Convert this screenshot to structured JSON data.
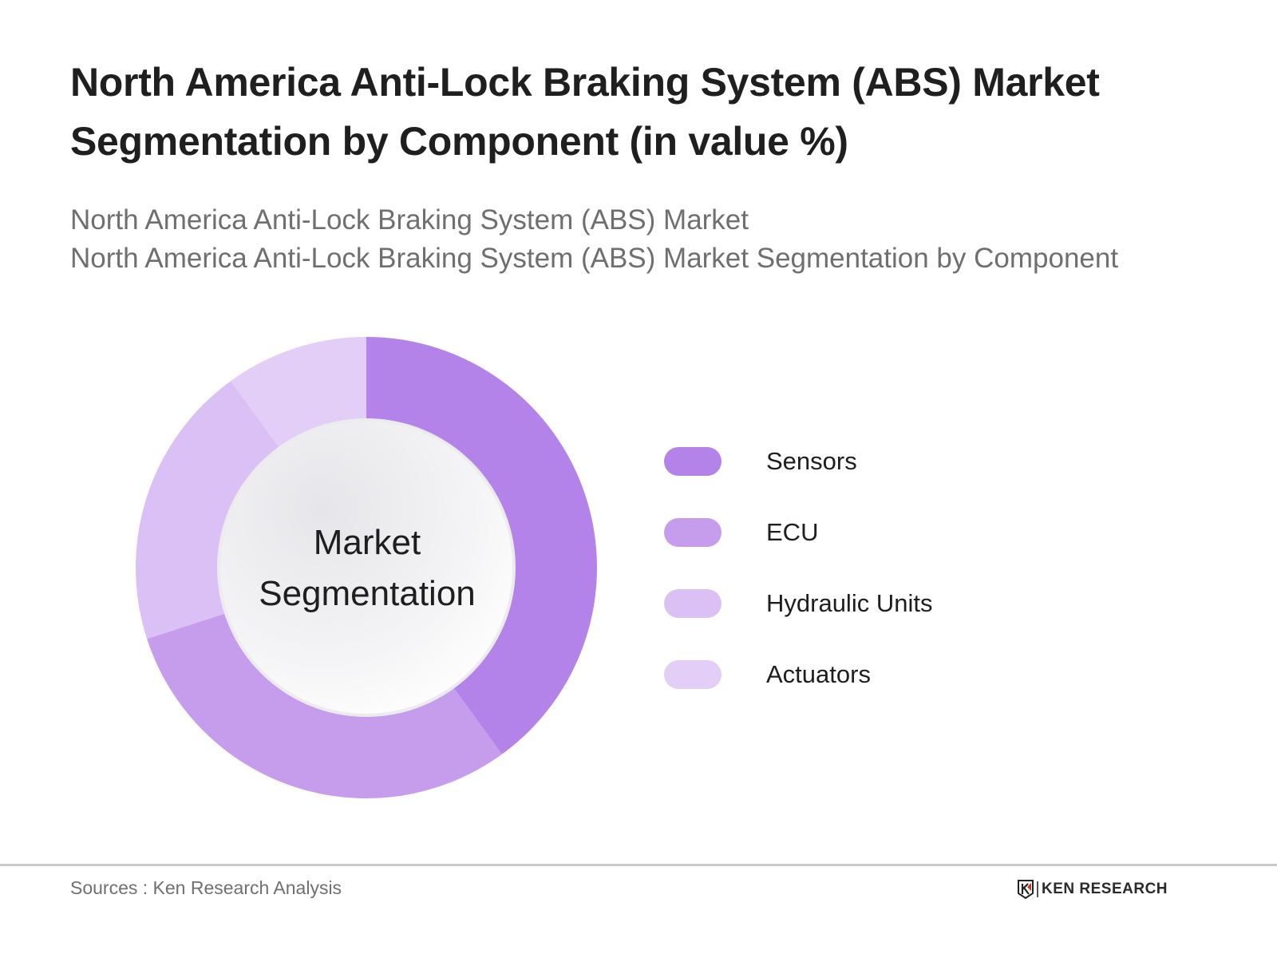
{
  "header": {
    "title_line1": "North America Anti-Lock Braking System (ABS) Market",
    "title_line2": "Segmentation by Component (in value %)",
    "subtitle_line1": "North America Anti-Lock Braking System (ABS) Market",
    "subtitle_line2": "North America Anti-Lock Braking System (ABS) Market Segmentation by Component"
  },
  "chart": {
    "center_line1": "Market",
    "center_line2": "Segmentation"
  },
  "legend": [
    {
      "label": "Sensors",
      "color": "#b383e9"
    },
    {
      "label": "ECU",
      "color": "#c69cec"
    },
    {
      "label": "Hydraulic Units",
      "color": "#dbc0f5"
    },
    {
      "label": "Actuators",
      "color": "#e3cef7"
    }
  ],
  "footer": {
    "source": "Sources : Ken Research Analysis",
    "logo_text": "KEN RESEARCH"
  },
  "chart_data": {
    "type": "pie",
    "subtype": "donut",
    "title": "North America Anti-Lock Braking System (ABS) Market Segmentation by Component (in value %)",
    "subtitle": "North America Anti-Lock Braking System (ABS) Market Segmentation by Component",
    "center_text": "Market Segmentation",
    "categories": [
      "Sensors",
      "ECU",
      "Hydraulic Units",
      "Actuators"
    ],
    "values": [
      40,
      30,
      20,
      10
    ],
    "unit": "%",
    "colors": [
      "#b383e9",
      "#c69cec",
      "#dbc0f5",
      "#e3cef7"
    ],
    "legend_position": "right",
    "start_angle": "12 o'clock, clockwise"
  }
}
